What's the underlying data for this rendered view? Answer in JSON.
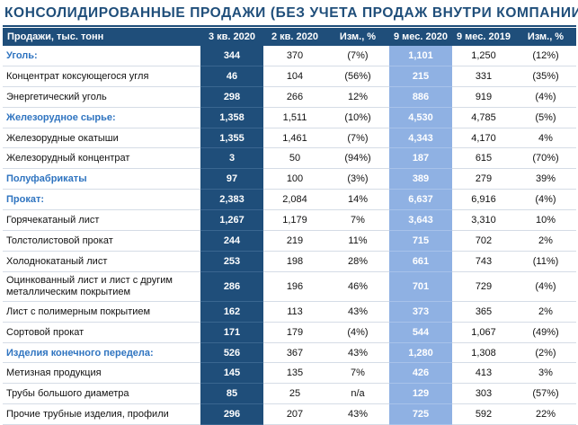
{
  "title": "КОНСОЛИДИРОВАННЫЕ ПРОДАЖИ (БЕЗ УЧЕТА ПРОДАЖ ВНУТРИ КОМПАНИИ)",
  "columns": [
    "Продажи, тыс. тонн",
    "3 кв. 2020",
    "2 кв. 2020",
    "Изм., %",
    "9 мес. 2020",
    "9 мес. 2019",
    "Изм., %"
  ],
  "rows": [
    {
      "label": "Уголь:",
      "category": true,
      "values": [
        "344",
        "370",
        "(7%)",
        "1,101",
        "1,250",
        "(12%)"
      ]
    },
    {
      "label": "Концентрат коксующегося угля",
      "category": false,
      "values": [
        "46",
        "104",
        "(56%)",
        "215",
        "331",
        "(35%)"
      ]
    },
    {
      "label": "Энергетический уголь",
      "category": false,
      "values": [
        "298",
        "266",
        "12%",
        "886",
        "919",
        "(4%)"
      ]
    },
    {
      "label": "Железорудное сырье:",
      "category": true,
      "values": [
        "1,358",
        "1,511",
        "(10%)",
        "4,530",
        "4,785",
        "(5%)"
      ]
    },
    {
      "label": "Железорудные окатыши",
      "category": false,
      "values": [
        "1,355",
        "1,461",
        "(7%)",
        "4,343",
        "4,170",
        "4%"
      ]
    },
    {
      "label": "Железорудный концентрат",
      "category": false,
      "values": [
        "3",
        "50",
        "(94%)",
        "187",
        "615",
        "(70%)"
      ]
    },
    {
      "label": "Полуфабрикаты",
      "category": true,
      "values": [
        "97",
        "100",
        "(3%)",
        "389",
        "279",
        "39%"
      ]
    },
    {
      "label": "Прокат:",
      "category": true,
      "values": [
        "2,383",
        "2,084",
        "14%",
        "6,637",
        "6,916",
        "(4%)"
      ]
    },
    {
      "label": "Горячекатаный лист",
      "category": false,
      "values": [
        "1,267",
        "1,179",
        "7%",
        "3,643",
        "3,310",
        "10%"
      ]
    },
    {
      "label": "Толстолистовой прокат",
      "category": false,
      "values": [
        "244",
        "219",
        "11%",
        "715",
        "702",
        "2%"
      ]
    },
    {
      "label": "Холоднокатаный лист",
      "category": false,
      "values": [
        "253",
        "198",
        "28%",
        "661",
        "743",
        "(11%)"
      ]
    },
    {
      "label": "Оцинкованный лист и лист с другим металлическим покрытием",
      "category": false,
      "tall": true,
      "values": [
        "286",
        "196",
        "46%",
        "701",
        "729",
        "(4%)"
      ]
    },
    {
      "label": "Лист с полимерным покрытием",
      "category": false,
      "values": [
        "162",
        "113",
        "43%",
        "373",
        "365",
        "2%"
      ]
    },
    {
      "label": "Сортовой прокат",
      "category": false,
      "values": [
        "171",
        "179",
        "(4%)",
        "544",
        "1,067",
        "(49%)"
      ]
    },
    {
      "label": "Изделия конечного передела:",
      "category": true,
      "values": [
        "526",
        "367",
        "43%",
        "1,280",
        "1,308",
        "(2%)"
      ]
    },
    {
      "label": "Метизная продукция",
      "category": false,
      "values": [
        "145",
        "135",
        "7%",
        "426",
        "413",
        "3%"
      ]
    },
    {
      "label": "Трубы большого диаметра",
      "category": false,
      "values": [
        "85",
        "25",
        "n/a",
        "129",
        "303",
        "(57%)"
      ]
    },
    {
      "label": "Прочие трубные изделия, профили",
      "category": false,
      "values": [
        "296",
        "207",
        "43%",
        "725",
        "592",
        "22%"
      ]
    }
  ]
}
